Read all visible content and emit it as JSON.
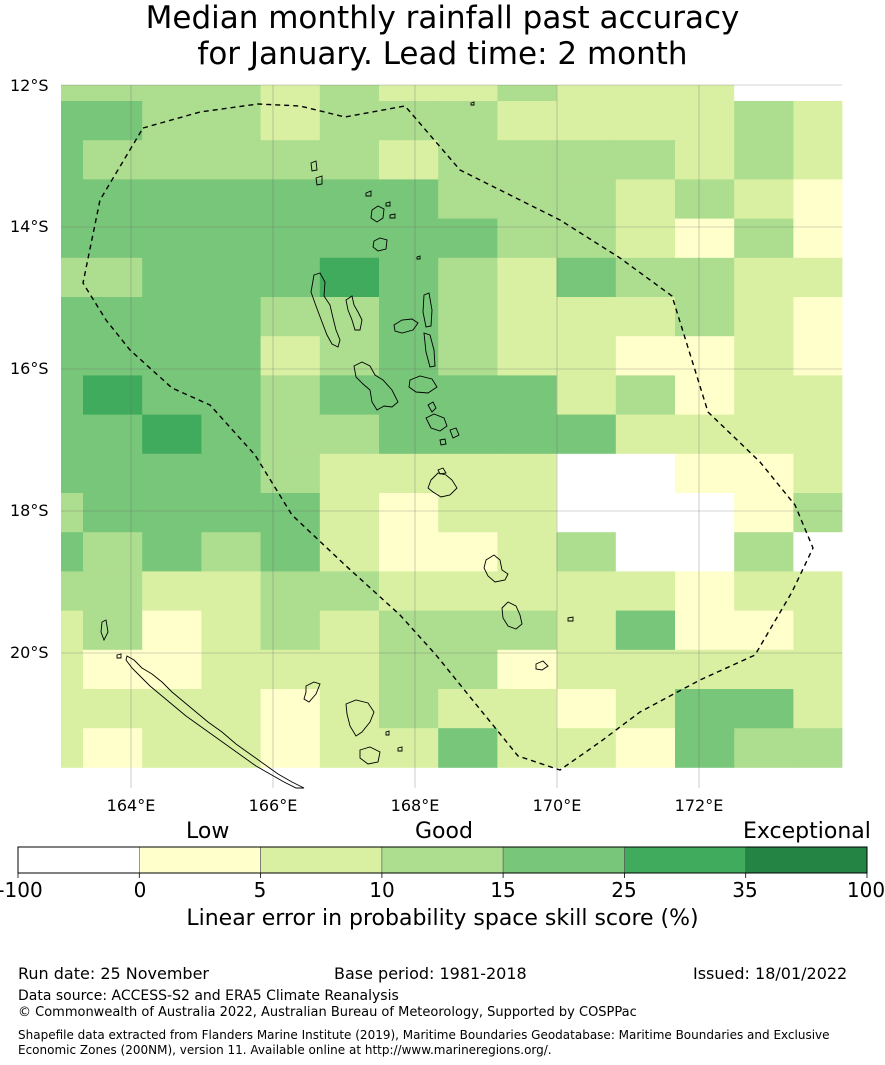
{
  "title": {
    "line1": "Median monthly rainfall past accuracy",
    "line2": "for January. Lead time: 2 month"
  },
  "map": {
    "lat_labels": [
      "12°S",
      "14°S",
      "16°S",
      "18°S",
      "20°S"
    ],
    "lon_labels": [
      "164°E",
      "166°E",
      "168°E",
      "170°E",
      "172°E"
    ],
    "lon_range": [
      162.9,
      173.9
    ],
    "lat_range": [
      -21.9,
      -12.0
    ],
    "cell_colors": [
      "#ffffff",
      "#ffffcc",
      "#d9f0a3",
      "#addd8e",
      "#78c679",
      "#41ab5d",
      "#238443"
    ],
    "grid": [
      [
        3,
        3,
        3,
        3,
        2,
        3,
        2,
        2,
        3,
        2,
        2,
        2,
        0,
        0
      ],
      [
        4,
        4,
        3,
        3,
        2,
        3,
        3,
        3,
        2,
        2,
        2,
        2,
        3,
        2
      ],
      [
        4,
        3,
        3,
        3,
        3,
        3,
        2,
        3,
        3,
        3,
        3,
        2,
        3,
        2
      ],
      [
        4,
        4,
        4,
        4,
        4,
        4,
        4,
        3,
        3,
        3,
        2,
        3,
        2,
        1
      ],
      [
        4,
        4,
        4,
        4,
        4,
        4,
        4,
        4,
        3,
        3,
        2,
        1,
        3,
        1
      ],
      [
        3,
        3,
        4,
        4,
        4,
        5,
        4,
        3,
        2,
        4,
        3,
        3,
        2,
        2
      ],
      [
        4,
        4,
        4,
        4,
        3,
        3,
        4,
        3,
        2,
        2,
        2,
        3,
        2,
        1
      ],
      [
        4,
        4,
        4,
        4,
        2,
        3,
        4,
        3,
        2,
        2,
        1,
        1,
        2,
        1
      ],
      [
        4,
        5,
        4,
        4,
        3,
        4,
        4,
        4,
        4,
        2,
        3,
        1,
        2,
        2
      ],
      [
        4,
        4,
        5,
        4,
        3,
        3,
        4,
        4,
        4,
        4,
        2,
        2,
        2,
        2
      ],
      [
        4,
        4,
        4,
        4,
        3,
        2,
        2,
        2,
        2,
        0,
        0,
        1,
        1,
        2
      ],
      [
        3,
        4,
        4,
        4,
        4,
        2,
        1,
        2,
        2,
        0,
        0,
        0,
        1,
        3
      ],
      [
        4,
        3,
        4,
        3,
        4,
        2,
        1,
        1,
        2,
        3,
        0,
        0,
        3,
        0
      ],
      [
        3,
        3,
        2,
        2,
        3,
        3,
        2,
        2,
        2,
        2,
        2,
        1,
        2,
        2
      ],
      [
        2,
        3,
        1,
        2,
        3,
        2,
        3,
        3,
        3,
        2,
        4,
        1,
        1,
        2
      ],
      [
        2,
        1,
        1,
        2,
        2,
        2,
        3,
        3,
        1,
        2,
        2,
        2,
        2,
        2
      ],
      [
        2,
        2,
        2,
        2,
        1,
        2,
        3,
        2,
        2,
        1,
        2,
        4,
        4,
        2
      ],
      [
        2,
        1,
        2,
        2,
        1,
        2,
        2,
        4,
        2,
        2,
        1,
        4,
        3,
        3
      ]
    ]
  },
  "colorbar": {
    "categories": [
      "Low",
      "Good",
      "Exceptional"
    ],
    "ticks": [
      "-100",
      "0",
      "5",
      "10",
      "15",
      "25",
      "35",
      "100"
    ],
    "colors": [
      "#ffffff",
      "#ffffcc",
      "#d9f0a3",
      "#addd8e",
      "#78c679",
      "#41ab5d",
      "#238443"
    ],
    "title": "Linear error in probability space skill score (%)"
  },
  "footer": {
    "run_date": "Run date: 25 November",
    "base_period": "Base period: 1981-2018",
    "issued": "Issued: 18/01/2022",
    "data_source": "Data source: ACCESS-S2 and ERA5 Climate Reanalysis",
    "copyright": "© Commonwealth of Australia 2022, Australian Bureau of Meteorology, Supported by COSPPac",
    "shapefile_line1": "Shapefile data extracted from Flanders Marine Institute (2019), Maritime Boundaries Geodatabase: Maritime Boundaries and Exclusive",
    "shapefile_line2": "Economic Zones (200NM), version 11. Available online at http://www.marineregions.org/."
  }
}
